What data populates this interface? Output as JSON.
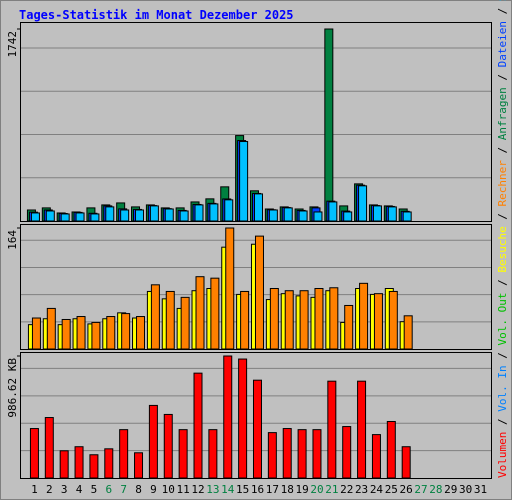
{
  "chart_data": {
    "type": "bar",
    "title": "Tages-Statistik im Monat Dezember 2025",
    "categories": [
      "1",
      "2",
      "3",
      "4",
      "5",
      "6",
      "7",
      "8",
      "9",
      "10",
      "11",
      "12",
      "13",
      "14",
      "15",
      "16",
      "17",
      "18",
      "19",
      "20",
      "21",
      "22",
      "23",
      "24",
      "25",
      "26",
      "27",
      "28",
      "29",
      "30",
      "31"
    ],
    "highlight": {
      "color": "#008040",
      "categories": [
        6,
        7,
        13,
        14,
        20,
        21,
        27,
        28
      ]
    },
    "legend_separator": "/",
    "panels": [
      {
        "ylim": [
          0,
          1742
        ],
        "yticks": [
          1742
        ],
        "series": [
          {
            "name": "Anfragen",
            "color": "#008040",
            "values": [
              100,
              119,
              73,
              82,
              119,
              146,
              164,
              128,
              146,
              119,
              119,
              173,
              201,
              310,
              775,
              274,
              109,
              128,
              109,
              128,
              1742,
              137,
              337,
              146,
              137,
              109,
              0,
              0,
              0,
              0,
              0
            ]
          },
          {
            "name": "Dateien",
            "color": "#0040FF",
            "values": [
              80,
              100,
              68,
              78,
              70,
              137,
              110,
              105,
              140,
              112,
              96,
              150,
              160,
              200,
              730,
              250,
              102,
              122,
              96,
              119,
              180,
              90,
              325,
              140,
              132,
              88,
              0,
              0,
              0,
              0,
              0
            ]
          },
          {
            "name": "Seiten",
            "color": "#00C0FF",
            "values": [
              73,
              91,
              64,
              73,
              64,
              128,
              100,
              100,
              137,
              109,
              91,
              146,
              155,
              192,
              721,
              246,
              100,
              119,
              91,
              82,
              173,
              82,
              319,
              137,
              128,
              82,
              0,
              0,
              0,
              0,
              0
            ]
          }
        ]
      },
      {
        "ylim": [
          0,
          164
        ],
        "yticks": [
          164
        ],
        "series": [
          {
            "name": "Besuche",
            "color": "#FFFF00",
            "values": [
              33,
              41,
              33,
              41,
              34,
              41,
              49,
              42,
              78,
              68,
              55,
              79,
              82,
              138,
              74,
              142,
              67,
              75,
              72,
              70,
              79,
              36,
              82,
              74,
              82,
              37,
              0,
              0,
              0,
              0,
              0
            ]
          },
          {
            "name": "Rechner",
            "color": "#FF8000",
            "values": [
              42,
              55,
              40,
              44,
              36,
              44,
              48,
              44,
              87,
              78,
              70,
              98,
              96,
              164,
              78,
              153,
              82,
              79,
              79,
              82,
              83,
              59,
              89,
              75,
              78,
              45,
              0,
              0,
              0,
              0,
              0
            ]
          }
        ]
      },
      {
        "ylim": [
          0,
          986.62
        ],
        "yticks": [
          {
            "value": 986.62,
            "label": "986.62 KB"
          }
        ],
        "series": [
          {
            "name": "Volumen",
            "color": "#FF0000",
            "values": [
              400,
              489,
              220,
              253,
              188,
              236,
              391,
              204,
              587,
              514,
              391,
              848,
              391,
              986.62,
              962,
              791,
              367,
              400,
              391,
              391,
              783,
              416,
              783,
              351,
              457,
              253,
              0,
              0,
              0,
              0,
              0
            ]
          },
          {
            "name": "Vol. In",
            "color": "#0080FF",
            "values": [
              0,
              0,
              0,
              0,
              0,
              0,
              0,
              0,
              0,
              0,
              0,
              0,
              0,
              0,
              0,
              0,
              0,
              0,
              0,
              0,
              0,
              0,
              0,
              0,
              0,
              0,
              0,
              0,
              0,
              0,
              0
            ]
          },
          {
            "name": "Vol. Out",
            "color": "#00C000",
            "values": [
              0,
              0,
              0,
              0,
              0,
              0,
              0,
              0,
              0,
              0,
              0,
              0,
              0,
              0,
              0,
              0,
              0,
              0,
              0,
              0,
              0,
              0,
              0,
              0,
              0,
              0,
              0,
              0,
              0,
              0,
              0
            ]
          }
        ]
      }
    ]
  }
}
